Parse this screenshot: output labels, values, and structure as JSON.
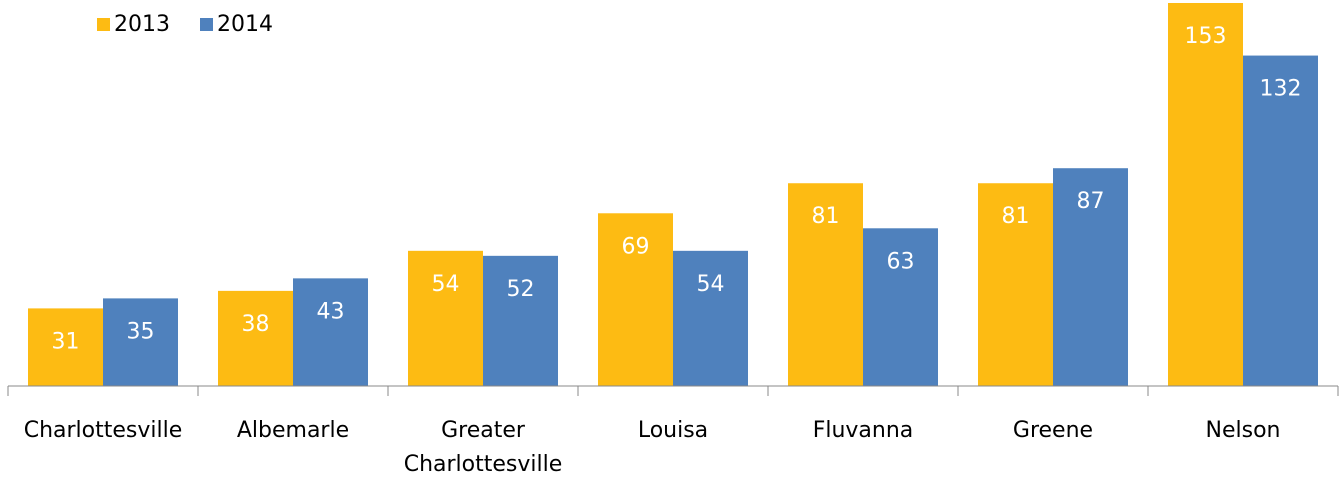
{
  "chart_data": {
    "type": "bar",
    "categories": [
      "Charlottesville",
      "Albemarle",
      "Greater Charlottesville",
      "Louisa",
      "Fluvanna",
      "Greene",
      "Nelson"
    ],
    "series": [
      {
        "name": "2013",
        "color": "#FDBB13",
        "values": [
          31,
          38,
          54,
          69,
          81,
          81,
          153
        ]
      },
      {
        "name": "2014",
        "color": "#4F81BD",
        "values": [
          35,
          43,
          52,
          54,
          63,
          87,
          132
        ]
      }
    ],
    "ylim": [
      0,
      153
    ],
    "legend": "top-left"
  }
}
